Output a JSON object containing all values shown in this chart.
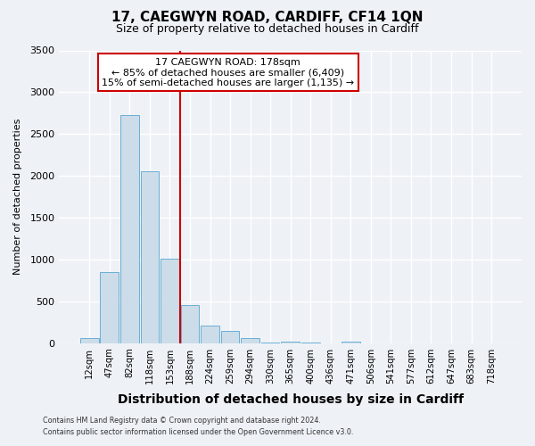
{
  "title": "17, CAEGWYN ROAD, CARDIFF, CF14 1QN",
  "subtitle": "Size of property relative to detached houses in Cardiff",
  "xlabel": "Distribution of detached houses by size in Cardiff",
  "ylabel": "Number of detached properties",
  "bar_labels": [
    "12sqm",
    "47sqm",
    "82sqm",
    "118sqm",
    "153sqm",
    "188sqm",
    "224sqm",
    "259sqm",
    "294sqm",
    "330sqm",
    "365sqm",
    "400sqm",
    "436sqm",
    "471sqm",
    "506sqm",
    "541sqm",
    "577sqm",
    "612sqm",
    "647sqm",
    "683sqm",
    "718sqm"
  ],
  "bar_values": [
    55,
    850,
    2730,
    2060,
    1010,
    455,
    210,
    145,
    55,
    5,
    15,
    5,
    0,
    15,
    0,
    0,
    0,
    0,
    0,
    0,
    0
  ],
  "bar_color": "#ccdce8",
  "bar_edge_color": "#6aafd6",
  "vline_x_idx": 5,
  "vline_color": "#cc0000",
  "annotation_title": "17 CAEGWYN ROAD: 178sqm",
  "annotation_line1": "← 85% of detached houses are smaller (6,409)",
  "annotation_line2": "15% of semi-detached houses are larger (1,135) →",
  "annotation_box_color": "#ffffff",
  "annotation_box_edge": "#cc0000",
  "ylim": [
    0,
    3500
  ],
  "yticks": [
    0,
    500,
    1000,
    1500,
    2000,
    2500,
    3000,
    3500
  ],
  "footer1": "Contains HM Land Registry data © Crown copyright and database right 2024.",
  "footer2": "Contains public sector information licensed under the Open Government Licence v3.0.",
  "bg_color": "#eef2f7",
  "grid_color": "#ffffff",
  "title_fontsize": 11,
  "subtitle_fontsize": 9,
  "ylabel_fontsize": 8,
  "xlabel_fontsize": 10
}
